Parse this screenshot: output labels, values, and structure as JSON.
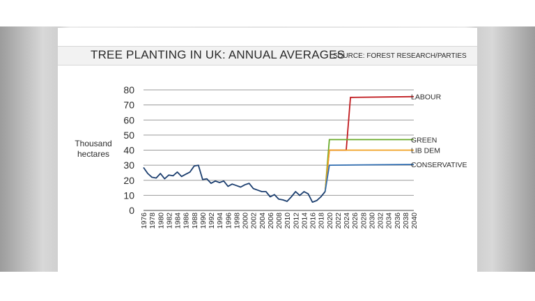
{
  "header": {
    "title": "TREE PLANTING IN UK: ANNUAL AVERAGES",
    "source": "SOURCE: FOREST RESEARCH/PARTIES"
  },
  "chart_data": {
    "type": "line",
    "title": "TREE PLANTING IN UK: ANNUAL AVERAGES",
    "ylabel_line1": "Thousand",
    "ylabel_line2": "hectares",
    "xlabel": "",
    "ylim": [
      0,
      80
    ],
    "yticks": [
      0,
      10,
      20,
      30,
      40,
      50,
      60,
      70,
      80
    ],
    "xlim": [
      1976,
      2040
    ],
    "xticks": [
      1976,
      1978,
      1980,
      1982,
      1984,
      1986,
      1988,
      1990,
      1992,
      1994,
      1996,
      1998,
      2000,
      2002,
      2004,
      2006,
      2008,
      2010,
      2012,
      2014,
      2016,
      2018,
      2020,
      2022,
      2024,
      2026,
      2028,
      2030,
      2032,
      2034,
      2036,
      2038,
      2040
    ],
    "grid": "horizontal",
    "historical": {
      "color": "#1a3d6e",
      "x": [
        1976,
        1977,
        1978,
        1979,
        1980,
        1981,
        1982,
        1983,
        1984,
        1985,
        1986,
        1987,
        1988,
        1989,
        1990,
        1991,
        1992,
        1993,
        1994,
        1995,
        1996,
        1997,
        1998,
        1999,
        2000,
        2001,
        2002,
        2003,
        2004,
        2005,
        2006,
        2007,
        2008,
        2009,
        2010,
        2011,
        2012,
        2013,
        2014,
        2015,
        2016,
        2017,
        2018,
        2019
      ],
      "y": [
        28.5,
        24.5,
        22,
        21.5,
        24.5,
        21,
        23.5,
        23,
        25.5,
        22.5,
        24,
        25.5,
        29.5,
        30,
        20.5,
        21,
        18,
        19.5,
        18.5,
        19.5,
        16,
        17.5,
        16.5,
        15.5,
        17,
        18,
        14.5,
        13.5,
        12.5,
        12.5,
        9,
        10.5,
        7.5,
        7,
        6,
        9,
        12.5,
        10,
        12.5,
        11,
        5.5,
        6.5,
        9,
        12.5
      ]
    },
    "series": [
      {
        "name": "LABOUR",
        "color": "#c0181c",
        "x": [
          2019,
          2020,
          2024,
          2025,
          2040
        ],
        "y": [
          12.5,
          40,
          40,
          75,
          75.5
        ]
      },
      {
        "name": "GREEN",
        "color": "#6aaa2a",
        "x": [
          2019,
          2020,
          2040
        ],
        "y": [
          12.5,
          47,
          47
        ]
      },
      {
        "name": "LIB DEM",
        "color": "#f0a020",
        "x": [
          2019,
          2020,
          2040
        ],
        "y": [
          12.5,
          40,
          40
        ]
      },
      {
        "name": "CONSERVATIVE",
        "color": "#2e6cb0",
        "x": [
          2019,
          2020,
          2040
        ],
        "y": [
          12.5,
          30,
          30.5
        ]
      }
    ]
  }
}
